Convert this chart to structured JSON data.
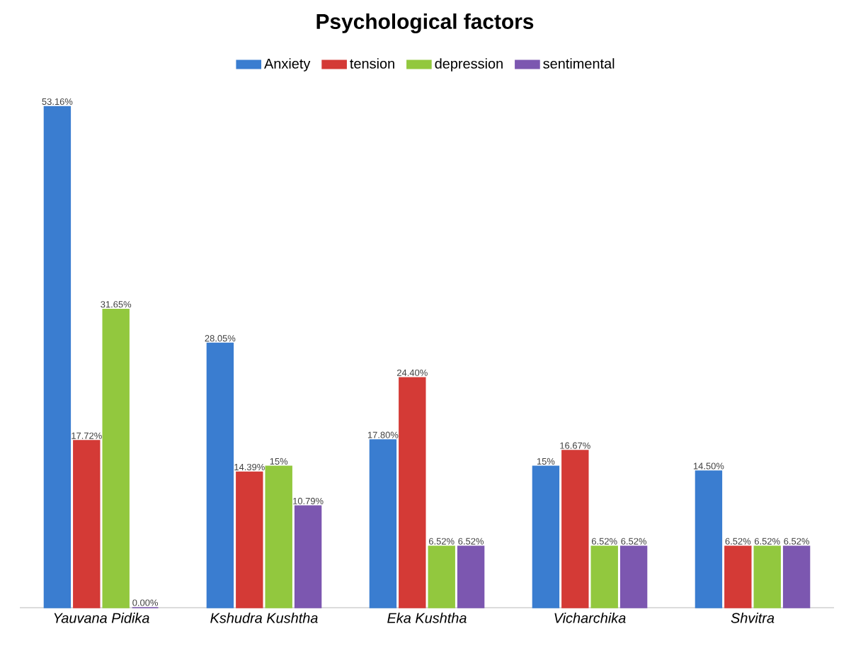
{
  "chart_data": {
    "type": "bar",
    "title": "Psychological factors",
    "categories": [
      "Yauvana Pidika",
      "Kshudra Kushtha",
      "Eka Kushtha",
      "Vicharchika",
      "Shvitra"
    ],
    "series": [
      {
        "name": "Anxiety",
        "color": "#3a7dd0",
        "values": [
          53.16,
          28.05,
          17.8,
          15,
          14.5
        ],
        "value_labels": [
          "53.16%",
          "28.05%",
          "17.80%",
          "15%",
          "14.50%"
        ]
      },
      {
        "name": "tension",
        "color": "#d43a36",
        "values": [
          17.72,
          14.39,
          24.4,
          16.67,
          6.52
        ],
        "value_labels": [
          "17.72%",
          "14.39%",
          "24.40%",
          "16.67%",
          "6.52%"
        ]
      },
      {
        "name": "depression",
        "color": "#92c83e",
        "values": [
          31.65,
          15,
          6.52,
          6.52,
          6.52
        ],
        "value_labels": [
          "31.65%",
          "15%",
          "6.52%",
          "6.52%",
          "6.52%"
        ]
      },
      {
        "name": "sentimental",
        "color": "#7c57b0",
        "values": [
          0,
          10.79,
          6.52,
          6.52,
          6.52
        ],
        "value_labels": [
          "0.00%",
          "10.79%",
          "6.52%",
          "6.52%",
          "6.52%"
        ]
      }
    ],
    "legend": "top"
  }
}
